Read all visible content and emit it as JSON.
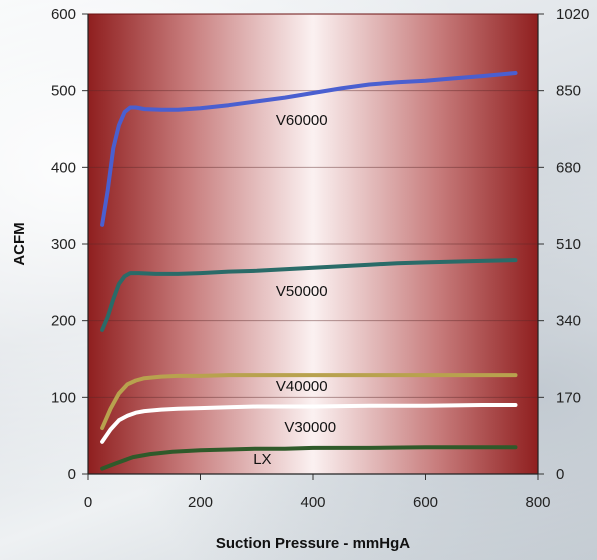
{
  "chart_data": {
    "type": "line",
    "title": "",
    "xlabel": "Suction Pressure - mmHgA",
    "ylabel": "ACFM",
    "xlim": [
      0,
      800
    ],
    "ylim": [
      0,
      600
    ],
    "y2lim": [
      0,
      1020
    ],
    "x_ticks": [
      "0",
      "200",
      "400",
      "600",
      "800"
    ],
    "y_ticks": [
      "0",
      "100",
      "200",
      "300",
      "400",
      "500",
      "600"
    ],
    "y2_ticks": [
      "0",
      "170",
      "340",
      "510",
      "680",
      "850",
      "1020"
    ],
    "grid": true,
    "series": [
      {
        "name": "V60000",
        "color": "#4a5fd0",
        "points": [
          [
            25,
            325
          ],
          [
            35,
            370
          ],
          [
            45,
            425
          ],
          [
            55,
            455
          ],
          [
            65,
            472
          ],
          [
            75,
            478
          ],
          [
            85,
            478
          ],
          [
            100,
            476
          ],
          [
            130,
            475
          ],
          [
            160,
            475
          ],
          [
            200,
            477
          ],
          [
            250,
            481
          ],
          [
            300,
            486
          ],
          [
            350,
            491
          ],
          [
            400,
            497
          ],
          [
            450,
            503
          ],
          [
            500,
            508
          ],
          [
            550,
            511
          ],
          [
            600,
            513
          ],
          [
            650,
            516
          ],
          [
            700,
            519
          ],
          [
            760,
            523
          ]
        ]
      },
      {
        "name": "V50000",
        "color": "#2a6b68",
        "points": [
          [
            25,
            188
          ],
          [
            35,
            205
          ],
          [
            45,
            228
          ],
          [
            55,
            248
          ],
          [
            65,
            258
          ],
          [
            75,
            262
          ],
          [
            90,
            262
          ],
          [
            120,
            261
          ],
          [
            160,
            261
          ],
          [
            200,
            262
          ],
          [
            250,
            264
          ],
          [
            300,
            265
          ],
          [
            350,
            267
          ],
          [
            400,
            269
          ],
          [
            450,
            271
          ],
          [
            500,
            273
          ],
          [
            550,
            275
          ],
          [
            600,
            276
          ],
          [
            650,
            277
          ],
          [
            700,
            278
          ],
          [
            760,
            279
          ]
        ]
      },
      {
        "name": "V40000",
        "color": "#b8a24e",
        "points": [
          [
            25,
            60
          ],
          [
            40,
            85
          ],
          [
            55,
            105
          ],
          [
            70,
            117
          ],
          [
            85,
            122
          ],
          [
            100,
            125
          ],
          [
            130,
            127
          ],
          [
            160,
            128
          ],
          [
            200,
            128
          ],
          [
            250,
            129
          ],
          [
            300,
            129
          ],
          [
            400,
            129
          ],
          [
            500,
            129
          ],
          [
            600,
            129
          ],
          [
            700,
            129
          ],
          [
            760,
            129
          ]
        ]
      },
      {
        "name": "V30000",
        "color": "#ffffff",
        "points": [
          [
            25,
            42
          ],
          [
            40,
            58
          ],
          [
            55,
            70
          ],
          [
            70,
            76
          ],
          [
            85,
            80
          ],
          [
            100,
            82
          ],
          [
            130,
            84
          ],
          [
            160,
            85
          ],
          [
            200,
            86
          ],
          [
            250,
            87
          ],
          [
            300,
            88
          ],
          [
            400,
            88
          ],
          [
            500,
            89
          ],
          [
            600,
            89
          ],
          [
            700,
            90
          ],
          [
            760,
            90
          ]
        ]
      },
      {
        "name": "LX",
        "color": "#2f5a2a",
        "points": [
          [
            25,
            7
          ],
          [
            50,
            14
          ],
          [
            80,
            22
          ],
          [
            110,
            26
          ],
          [
            150,
            29
          ],
          [
            200,
            31
          ],
          [
            250,
            32
          ],
          [
            300,
            33
          ],
          [
            350,
            33
          ],
          [
            400,
            34
          ],
          [
            500,
            34
          ],
          [
            600,
            35
          ],
          [
            700,
            35
          ],
          [
            760,
            35
          ]
        ]
      }
    ],
    "labels": [
      {
        "series": "V60000",
        "text": "V60000",
        "x": 380,
        "y": 455
      },
      {
        "series": "V50000",
        "text": "V50000",
        "x": 380,
        "y": 232
      },
      {
        "series": "V40000",
        "text": "V40000",
        "x": 380,
        "y": 108
      },
      {
        "series": "V30000",
        "text": "V30000",
        "x": 395,
        "y": 55
      },
      {
        "series": "LX",
        "text": "LX",
        "x": 310,
        "y": 13
      }
    ]
  }
}
